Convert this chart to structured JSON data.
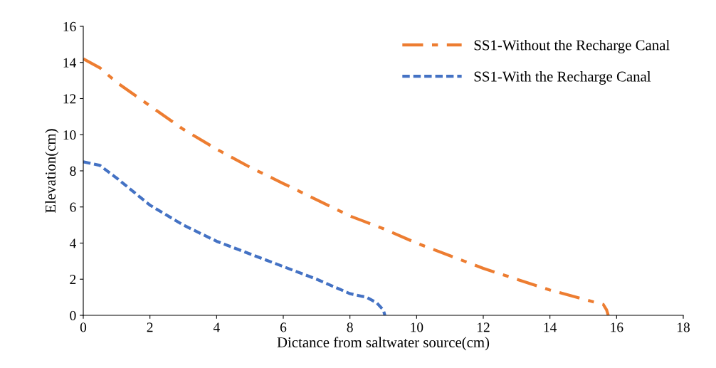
{
  "chart_data": {
    "type": "line",
    "xlabel": "Dictance from saltwater source(cm)",
    "ylabel": "Elevation(cm)",
    "xlim": [
      0,
      18
    ],
    "xticks": [
      0,
      2,
      4,
      6,
      8,
      10,
      12,
      14,
      16,
      18
    ],
    "ylim": [
      0,
      16
    ],
    "yticks": [
      0,
      2,
      4,
      6,
      8,
      10,
      12,
      14,
      16
    ],
    "grid": false,
    "legend": "top right",
    "marker": "none",
    "series": [
      {
        "name": "SS1-Without the Recharge Canal",
        "color": "#ed7d31",
        "line_style": "dashdot",
        "x": [
          0,
          0.5,
          1,
          2,
          3,
          4,
          5,
          6,
          7,
          8,
          9,
          10,
          11,
          12,
          13,
          14,
          15,
          15.6,
          15.7,
          15.75
        ],
        "values": [
          14.2,
          13.7,
          12.9,
          11.6,
          10.3,
          9.2,
          8.2,
          7.3,
          6.4,
          5.5,
          4.8,
          4.0,
          3.3,
          2.6,
          2.0,
          1.4,
          0.9,
          0.6,
          0.3,
          0
        ]
      },
      {
        "name": "SS1-With the Recharge Canal",
        "color": "#4472c4",
        "line_style": "dotted",
        "x": [
          0,
          0.5,
          1,
          2,
          3,
          4,
          5,
          6,
          7,
          8,
          8.5,
          8.8,
          9.0,
          9.05
        ],
        "values": [
          8.5,
          8.3,
          7.6,
          6.1,
          5.0,
          4.1,
          3.4,
          2.7,
          2.0,
          1.2,
          1.0,
          0.7,
          0.3,
          0
        ]
      }
    ]
  }
}
